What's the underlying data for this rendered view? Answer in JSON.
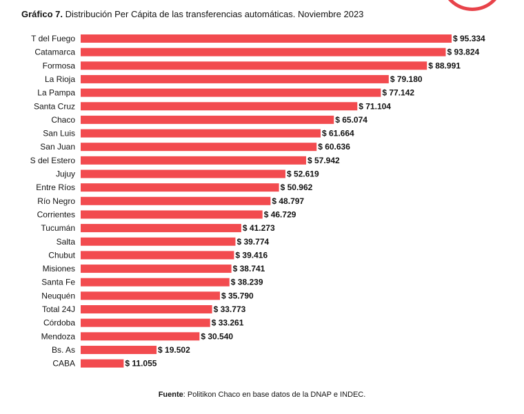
{
  "header": {
    "title_bold": "Gráfico 7.",
    "title_rest": " Distribución Per Cápita de las transferencias automáticas. Noviembre 2023"
  },
  "footer": {
    "source_bold": "Fuente",
    "source_rest": ": Politikon Chaco en base datos de la DNAP e INDEC."
  },
  "chart_data": {
    "type": "bar",
    "orientation": "horizontal",
    "title": "Gráfico 7. Distribución Per Cápita de las transferencias automáticas. Noviembre 2023",
    "xlabel": "",
    "ylabel": "",
    "bar_color": "#f24b4f",
    "value_prefix": "$ ",
    "categories": [
      "T del Fuego",
      "Catamarca",
      "Formosa",
      "La Rioja",
      "La Pampa",
      "Santa Cruz",
      "Chaco",
      "San Luis",
      "San Juan",
      "S del Estero",
      "Jujuy",
      "Entre Ríos",
      "Río Negro",
      "Corrientes",
      "Tucumán",
      "Salta",
      "Chubut",
      "Misiones",
      "Santa Fe",
      "Neuquén",
      "Total 24J",
      "Córdoba",
      "Mendoza",
      "Bs. As",
      "CABA"
    ],
    "values": [
      95334,
      93824,
      88991,
      79180,
      77142,
      71104,
      65074,
      61664,
      60636,
      57942,
      52619,
      50962,
      48797,
      46729,
      41273,
      39774,
      39416,
      38741,
      38239,
      35790,
      33773,
      33261,
      30540,
      19502,
      11055
    ],
    "value_labels": [
      "$ 95.334",
      "$ 93.824",
      "$ 88.991",
      "$ 79.180",
      "$ 77.142",
      "$ 71.104",
      "$ 65.074",
      "$ 61.664",
      "$ 60.636",
      "$ 57.942",
      "$ 52.619",
      "$ 50.962",
      "$ 48.797",
      "$ 46.729",
      "$ 41.273",
      "$ 39.774",
      "$ 39.416",
      "$ 38.741",
      "$ 38.239",
      "$ 35.790",
      "$ 33.773",
      "$ 33.261",
      "$ 30.540",
      "$ 19.502",
      "$ 11.055"
    ],
    "xlim": [
      0,
      95334
    ],
    "grid": false,
    "legend": "none"
  }
}
